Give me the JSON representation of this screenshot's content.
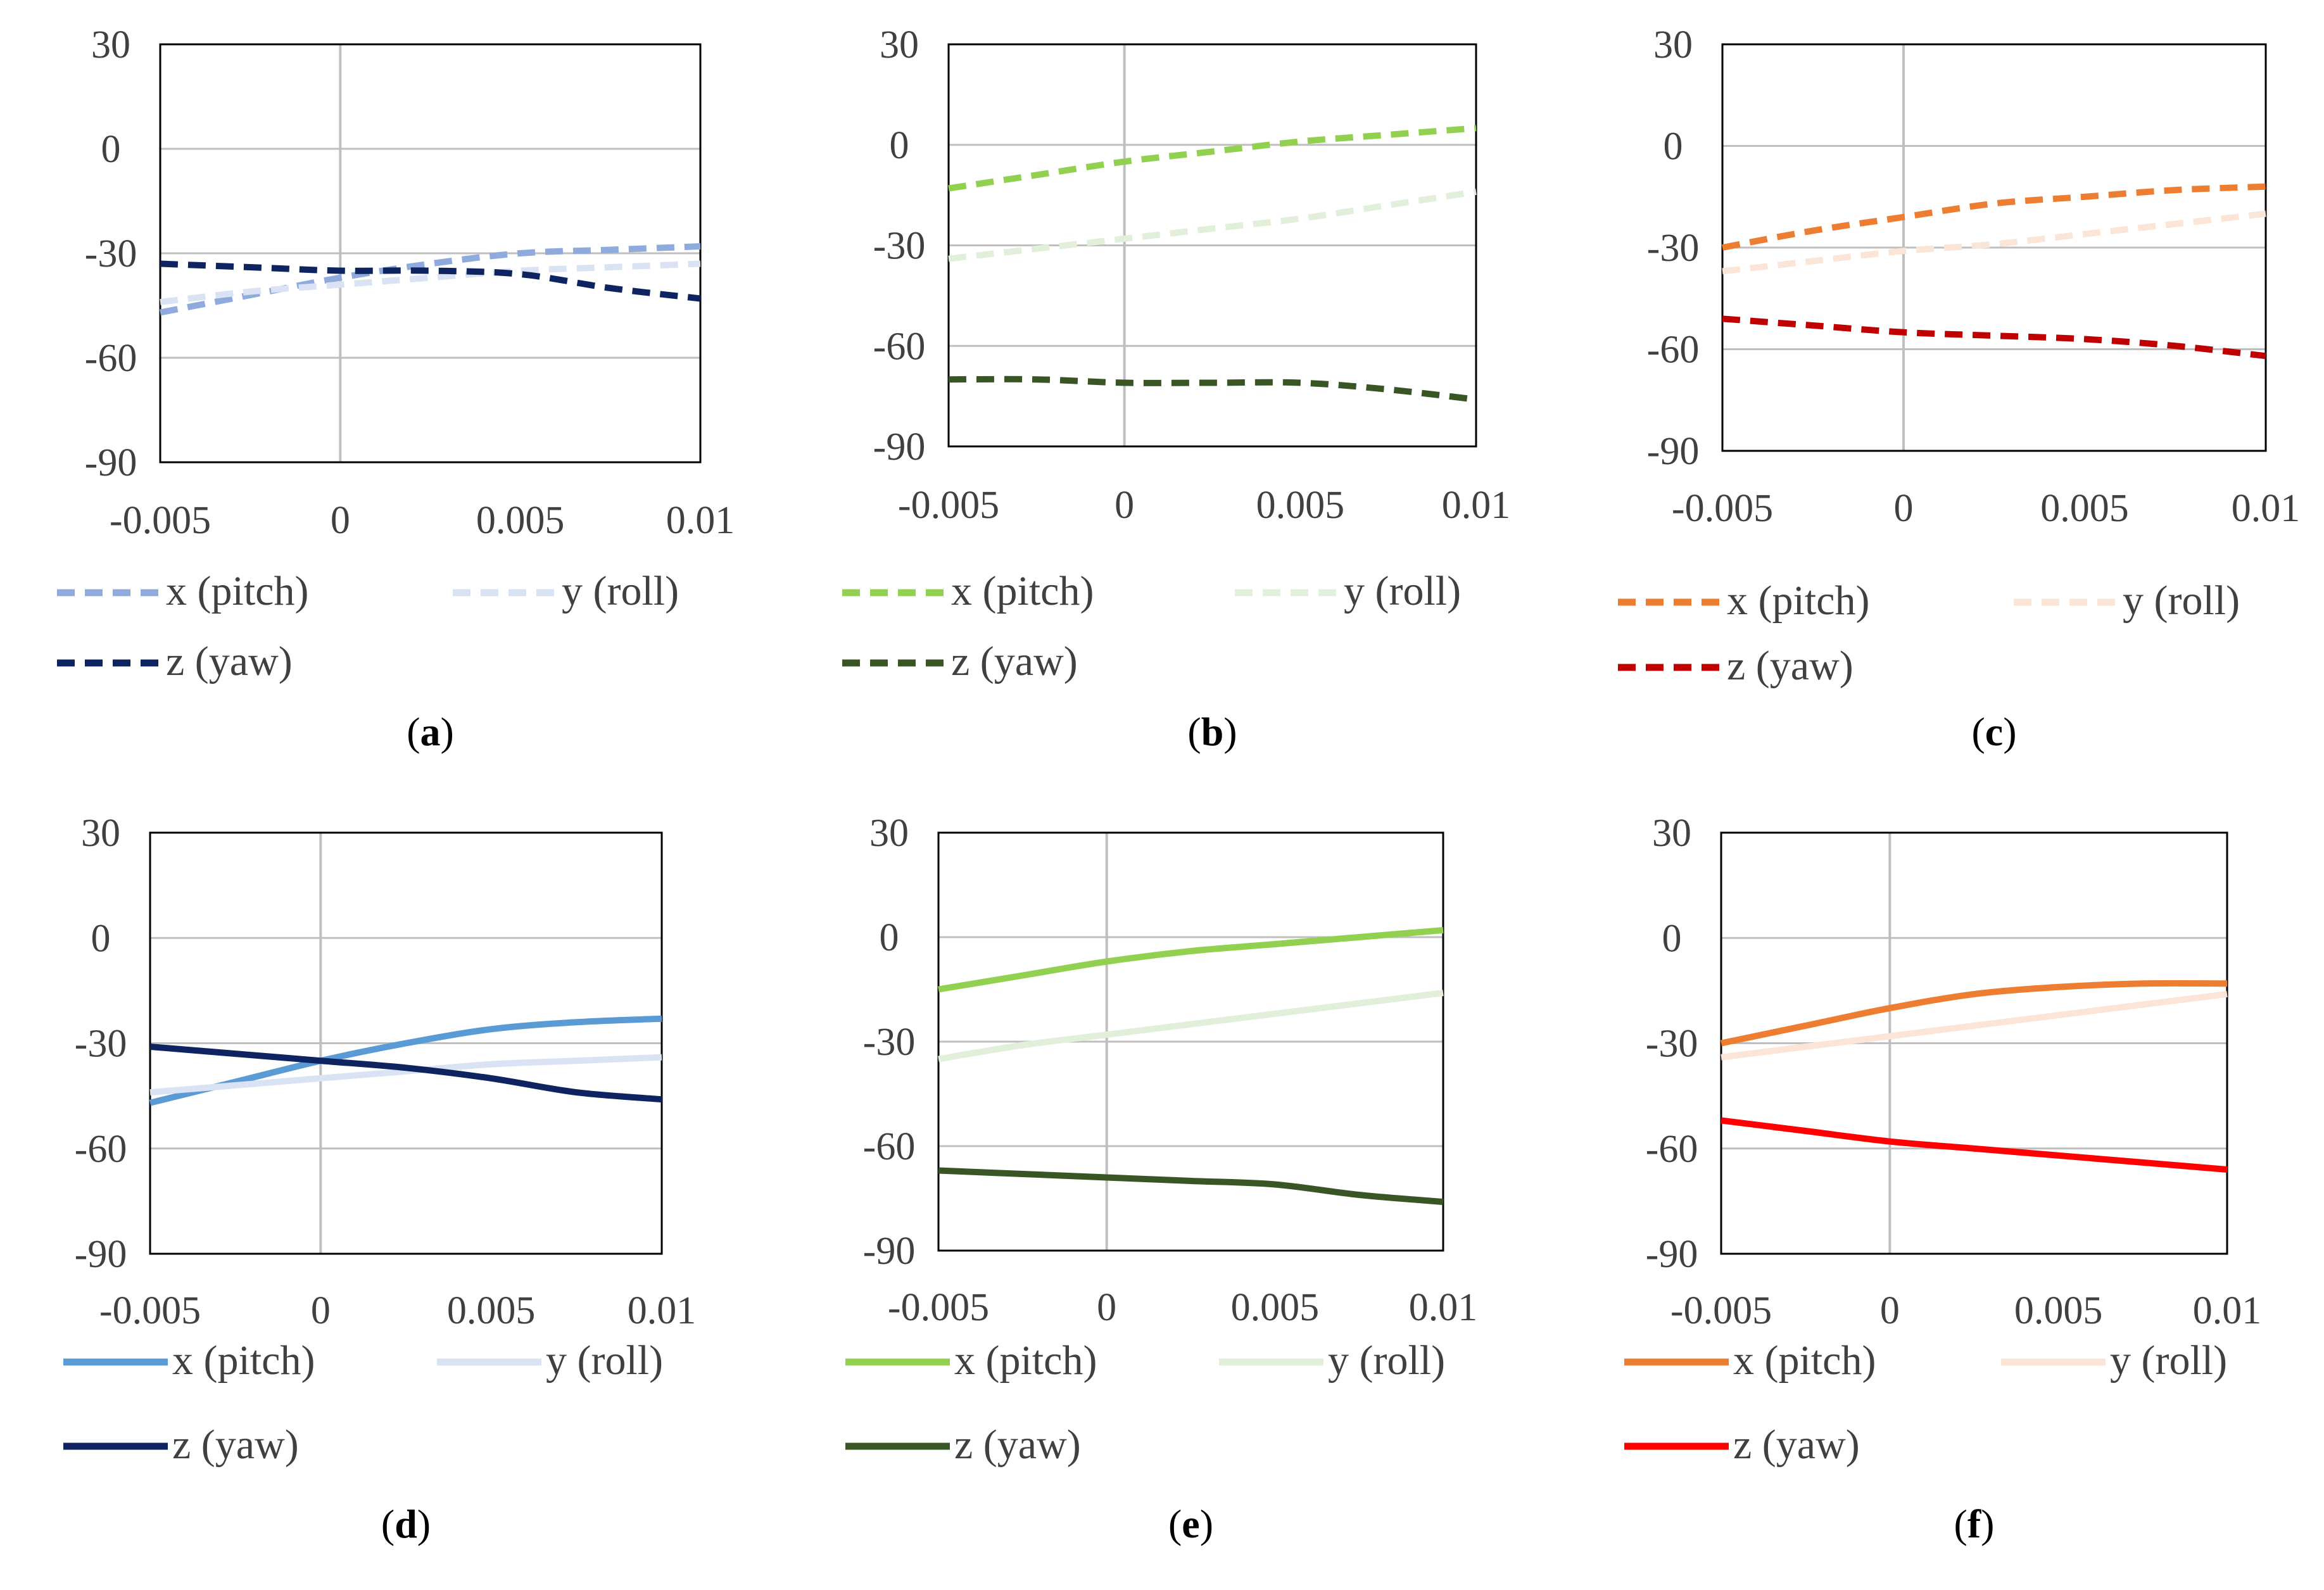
{
  "figure_title": "",
  "chart_data": [
    {
      "type": "line",
      "caption": "a",
      "style": "dashed",
      "xlim": [
        -0.005,
        0.01
      ],
      "ylim": [
        -90,
        30
      ],
      "xticks": [
        -0.005,
        0,
        0.005,
        0.01
      ],
      "xtick_labels": [
        "-0.005",
        "0",
        "0.005",
        "0.01"
      ],
      "yticks": [
        30,
        0,
        -30,
        -60,
        -90
      ],
      "ytick_labels": [
        "30",
        "0",
        "-30",
        "-60",
        "-90"
      ],
      "x": [
        -0.005,
        -0.0025,
        0,
        0.0025,
        0.005,
        0.0075,
        0.01
      ],
      "series": [
        {
          "name": "x (pitch)",
          "color": "#8faadc",
          "values": [
            -47,
            -42,
            -37,
            -33,
            -30,
            -29,
            -28
          ]
        },
        {
          "name": "y (roll)",
          "color": "#dae3f3",
          "values": [
            -44,
            -41,
            -39,
            -37,
            -35,
            -34,
            -33
          ]
        },
        {
          "name": "z (yaw)",
          "color": "#0e2460",
          "values": [
            -33,
            -34,
            -35,
            -35,
            -36,
            -40,
            -43
          ]
        }
      ]
    },
    {
      "type": "line",
      "caption": "b",
      "style": "dashed",
      "xlim": [
        -0.005,
        0.01
      ],
      "ylim": [
        -90,
        30
      ],
      "xticks": [
        -0.005,
        0,
        0.005,
        0.01
      ],
      "xtick_labels": [
        "-0.005",
        "0",
        "0.005",
        "0.01"
      ],
      "yticks": [
        30,
        0,
        -30,
        -60,
        -90
      ],
      "ytick_labels": [
        "30",
        "0",
        "-30",
        "-60",
        "-90"
      ],
      "x": [
        -0.005,
        -0.0025,
        0,
        0.0025,
        0.005,
        0.0075,
        0.01
      ],
      "series": [
        {
          "name": "x (pitch)",
          "color": "#92d050",
          "values": [
            -13,
            -9,
            -5,
            -2,
            1,
            3,
            5
          ]
        },
        {
          "name": "y (roll)",
          "color": "#e2efda",
          "values": [
            -34,
            -31,
            -28,
            -25,
            -22,
            -18,
            -14
          ]
        },
        {
          "name": "z (yaw)",
          "color": "#375623",
          "values": [
            -70,
            -70,
            -71,
            -71,
            -71,
            -73,
            -76
          ]
        }
      ]
    },
    {
      "type": "line",
      "caption": "c",
      "style": "dashed",
      "xlim": [
        -0.005,
        0.01
      ],
      "ylim": [
        -90,
        30
      ],
      "xticks": [
        -0.005,
        0,
        0.005,
        0.01
      ],
      "xtick_labels": [
        "-0.005",
        "0",
        "0.005",
        "0.01"
      ],
      "yticks": [
        30,
        0,
        -30,
        -60,
        -90
      ],
      "ytick_labels": [
        "30",
        "0",
        "-30",
        "-60",
        "-90"
      ],
      "x": [
        -0.005,
        -0.0025,
        0,
        0.0025,
        0.005,
        0.0075,
        0.01
      ],
      "series": [
        {
          "name": "x (pitch)",
          "color": "#ed7d31",
          "values": [
            -30,
            -25,
            -21,
            -17,
            -15,
            -13,
            -12
          ]
        },
        {
          "name": "y (roll)",
          "color": "#fbe5d6",
          "values": [
            -37,
            -34,
            -31,
            -29,
            -26,
            -23,
            -20
          ]
        },
        {
          "name": "z (yaw)",
          "color": "#c00000",
          "values": [
            -51,
            -53,
            -55,
            -56,
            -57,
            -59,
            -62
          ]
        }
      ]
    },
    {
      "type": "line",
      "caption": "d",
      "style": "solid",
      "xlim": [
        -0.005,
        0.01
      ],
      "ylim": [
        -90,
        30
      ],
      "xticks": [
        -0.005,
        0,
        0.005,
        0.01
      ],
      "xtick_labels": [
        "-0.005",
        "0",
        "0.005",
        "0.01"
      ],
      "yticks": [
        30,
        0,
        -30,
        -60,
        -90
      ],
      "ytick_labels": [
        "30",
        "0",
        "-30",
        "-60",
        "-90"
      ],
      "x": [
        -0.005,
        -0.0025,
        0,
        0.0025,
        0.005,
        0.0075,
        0.01
      ],
      "series": [
        {
          "name": "x (pitch)",
          "color": "#5b9bd5",
          "values": [
            -47,
            -41,
            -35,
            -30,
            -26,
            -24,
            -23
          ]
        },
        {
          "name": "y (roll)",
          "color": "#dae3f3",
          "values": [
            -44,
            -42,
            -40,
            -38,
            -36,
            -35,
            -34
          ]
        },
        {
          "name": "z (yaw)",
          "color": "#0e2460",
          "values": [
            -31,
            -33,
            -35,
            -37,
            -40,
            -44,
            -46
          ]
        }
      ]
    },
    {
      "type": "line",
      "caption": "e",
      "style": "solid",
      "xlim": [
        -0.005,
        0.01
      ],
      "ylim": [
        -90,
        30
      ],
      "xticks": [
        -0.005,
        0,
        0.005,
        0.01
      ],
      "xtick_labels": [
        "-0.005",
        "0",
        "0.005",
        "0.01"
      ],
      "yticks": [
        30,
        0,
        -30,
        -60,
        -90
      ],
      "ytick_labels": [
        "30",
        "0",
        "-30",
        "-60",
        "-90"
      ],
      "x": [
        -0.005,
        -0.0025,
        0,
        0.0025,
        0.005,
        0.0075,
        0.01
      ],
      "series": [
        {
          "name": "x (pitch)",
          "color": "#92d050",
          "values": [
            -15,
            -11,
            -7,
            -4,
            -2,
            0,
            2
          ]
        },
        {
          "name": "y (roll)",
          "color": "#e2efda",
          "values": [
            -35,
            -31,
            -28,
            -25,
            -22,
            -19,
            -16
          ]
        },
        {
          "name": "z (yaw)",
          "color": "#375623",
          "values": [
            -67,
            -68,
            -69,
            -70,
            -71,
            -74,
            -76
          ]
        }
      ]
    },
    {
      "type": "line",
      "caption": "f",
      "style": "solid",
      "xlim": [
        -0.005,
        0.01
      ],
      "ylim": [
        -90,
        30
      ],
      "xticks": [
        -0.005,
        0,
        0.005,
        0.01
      ],
      "xtick_labels": [
        "-0.005",
        "0",
        "0.005",
        "0.01"
      ],
      "yticks": [
        30,
        0,
        -30,
        -60,
        -90
      ],
      "ytick_labels": [
        "30",
        "0",
        "-30",
        "-60",
        "-90"
      ],
      "x": [
        -0.005,
        -0.0025,
        0,
        0.0025,
        0.005,
        0.0075,
        0.01
      ],
      "series": [
        {
          "name": "x (pitch)",
          "color": "#ed7d31",
          "values": [
            -30,
            -25,
            -20,
            -16,
            -14,
            -13,
            -13
          ]
        },
        {
          "name": "y (roll)",
          "color": "#fbe5d6",
          "values": [
            -34,
            -31,
            -28,
            -25,
            -22,
            -19,
            -16
          ]
        },
        {
          "name": "z (yaw)",
          "color": "#ff0000",
          "values": [
            -52,
            -55,
            -58,
            -60,
            -62,
            -64,
            -66
          ]
        }
      ]
    }
  ]
}
